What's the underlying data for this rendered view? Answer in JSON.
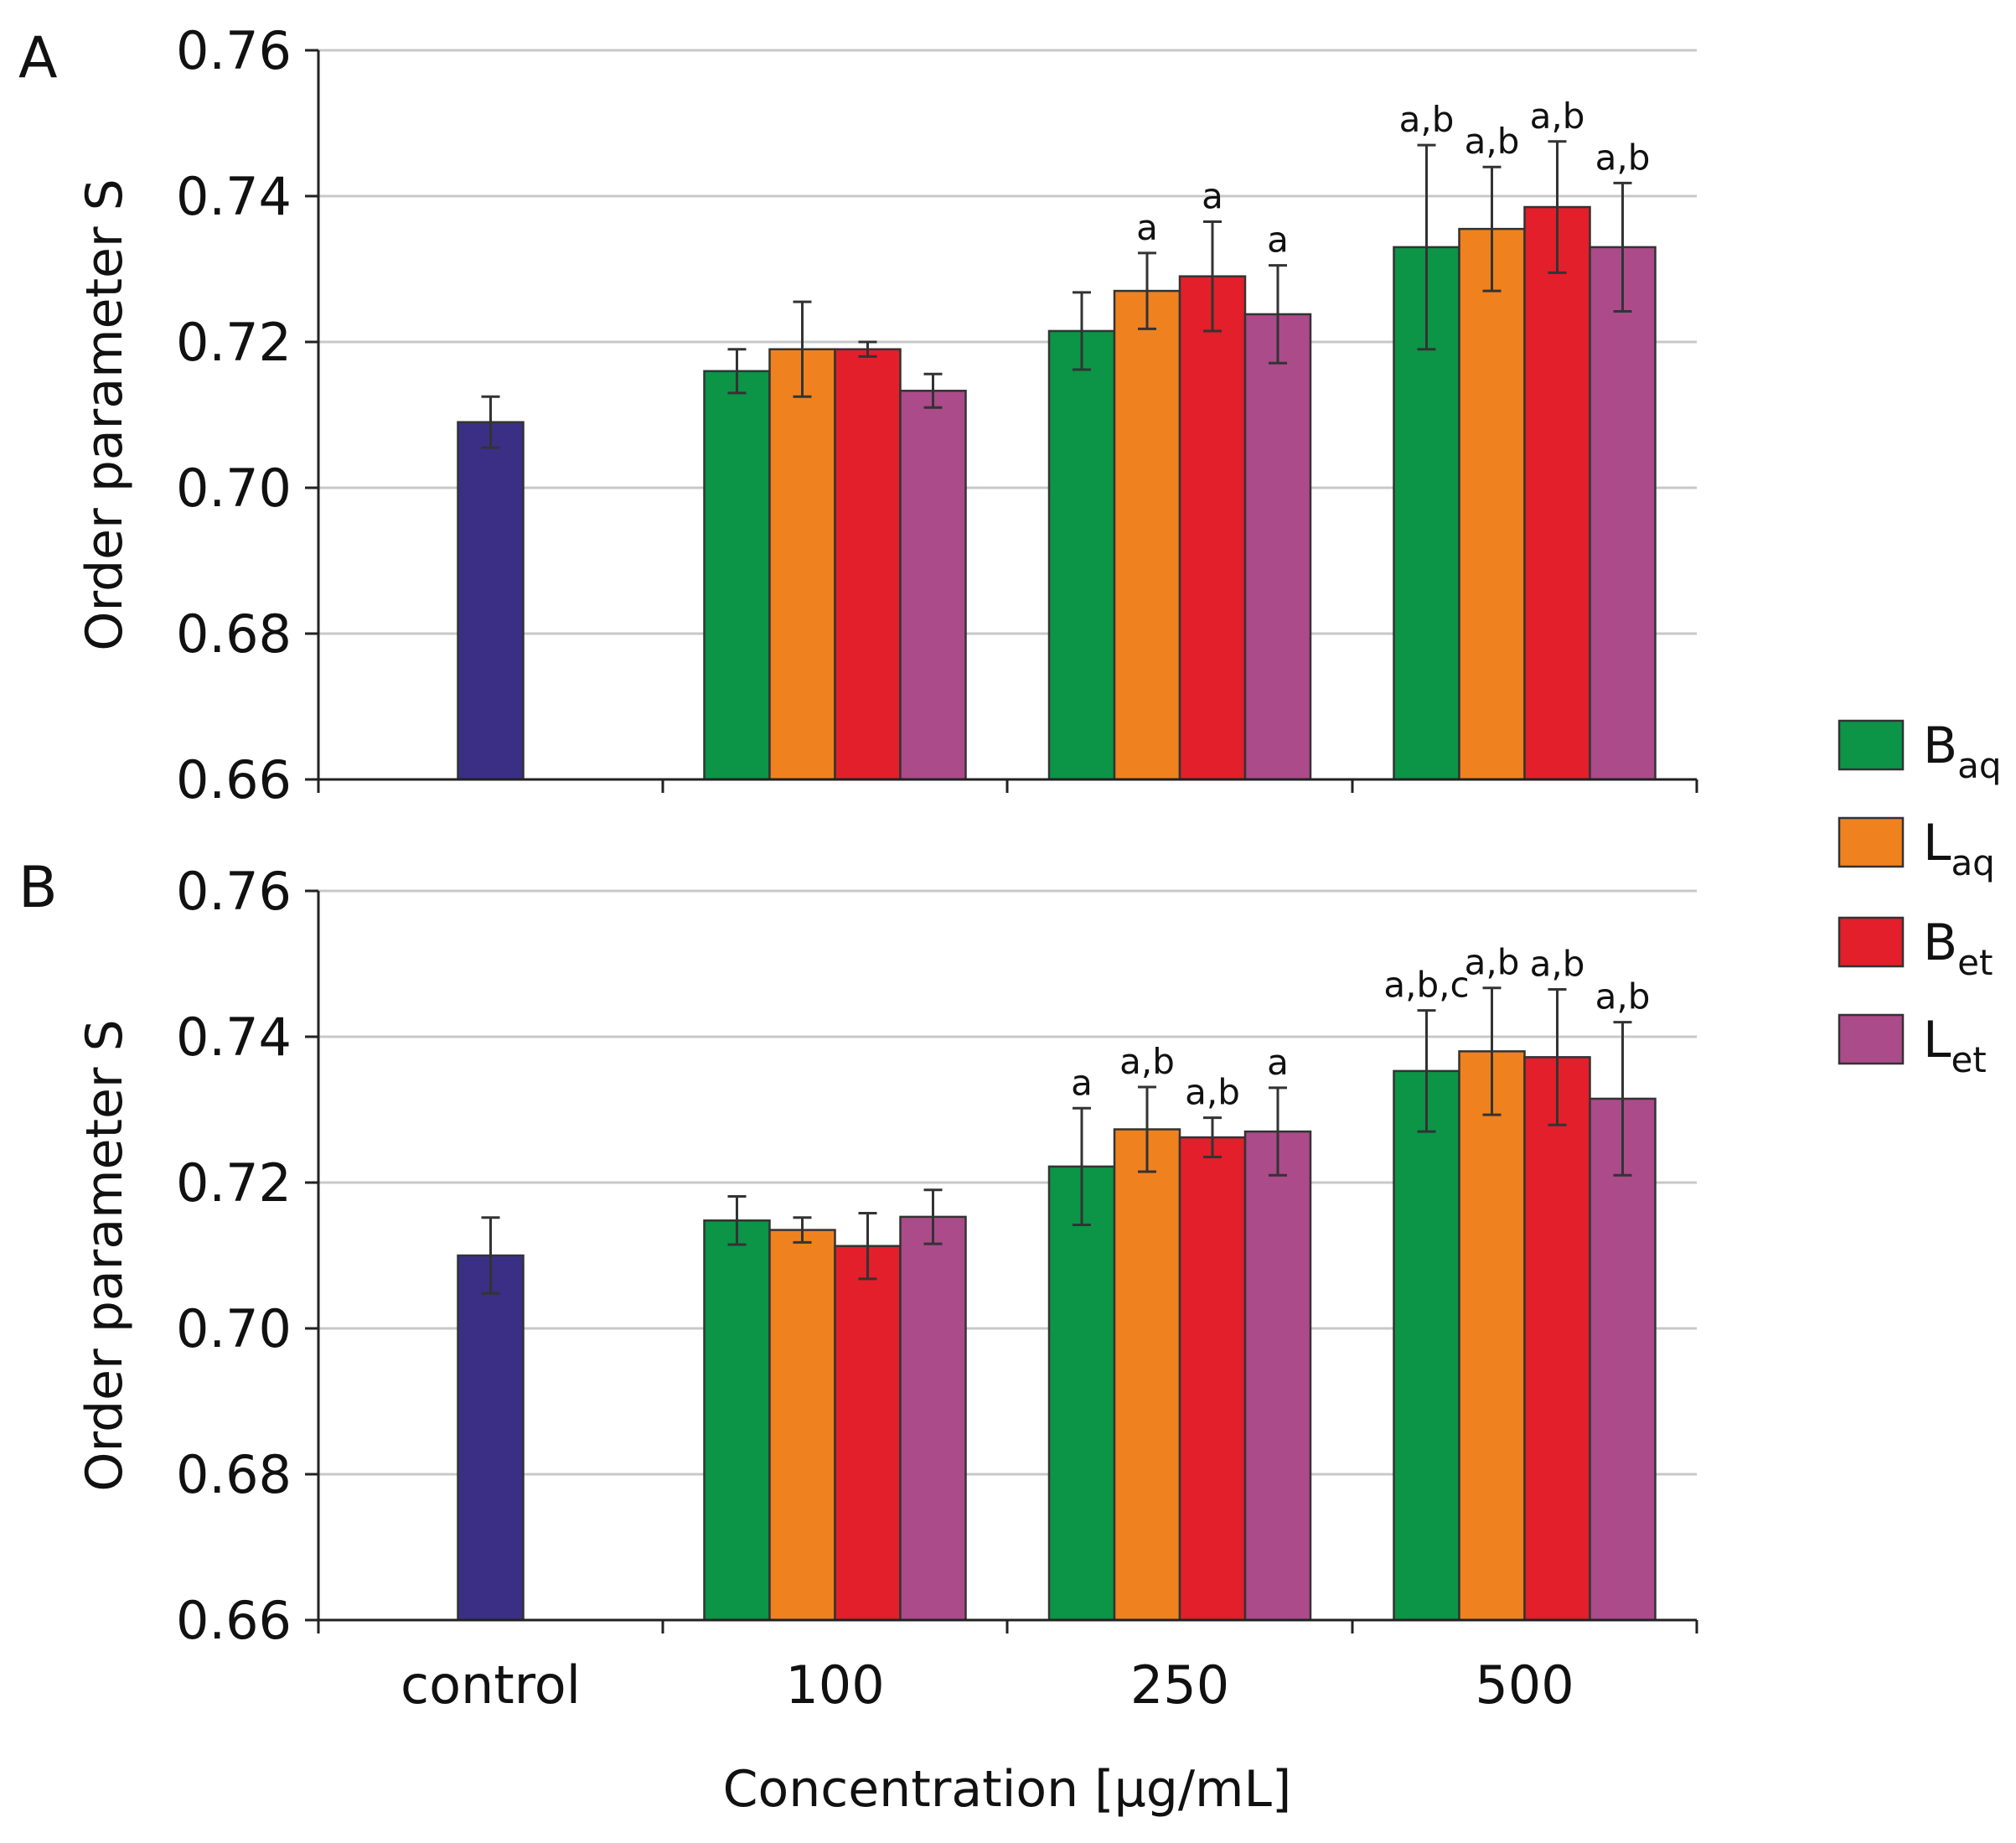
{
  "chart_data": [
    {
      "panel": "A",
      "type": "bar",
      "ylabel": "Order parameter S",
      "xlabel": "",
      "ylim": [
        0.66,
        0.76
      ],
      "yticks": [
        "0.76",
        "0.74",
        "0.72",
        "0.70",
        "0.68",
        "0.66"
      ],
      "grid": true,
      "groups": [
        {
          "category": "control",
          "bars": [
            {
              "series": "control",
              "value": 0.709,
              "error": 0.0035,
              "annotation": ""
            }
          ]
        },
        {
          "category": "100",
          "bars": [
            {
              "series": "Baq",
              "value": 0.716,
              "error": 0.003,
              "annotation": ""
            },
            {
              "series": "Laq",
              "value": 0.719,
              "error": 0.0065,
              "annotation": ""
            },
            {
              "series": "Bet",
              "value": 0.719,
              "error": 0.001,
              "annotation": ""
            },
            {
              "series": "Let",
              "value": 0.7133,
              "error": 0.0023,
              "annotation": ""
            }
          ]
        },
        {
          "category": "250",
          "bars": [
            {
              "series": "Baq",
              "value": 0.7215,
              "error": 0.0053,
              "annotation": ""
            },
            {
              "series": "Laq",
              "value": 0.727,
              "error": 0.0052,
              "annotation": "a"
            },
            {
              "series": "Bet",
              "value": 0.729,
              "error": 0.0075,
              "annotation": "a"
            },
            {
              "series": "Let",
              "value": 0.7238,
              "error": 0.0067,
              "annotation": "a"
            }
          ]
        },
        {
          "category": "500",
          "bars": [
            {
              "series": "Baq",
              "value": 0.733,
              "error": 0.014,
              "annotation": "a,b"
            },
            {
              "series": "Laq",
              "value": 0.7355,
              "error": 0.0085,
              "annotation": "a,b"
            },
            {
              "series": "Bet",
              "value": 0.7385,
              "error": 0.009,
              "annotation": "a,b"
            },
            {
              "series": "Let",
              "value": 0.733,
              "error": 0.0088,
              "annotation": "a,b"
            }
          ]
        }
      ]
    },
    {
      "panel": "B",
      "type": "bar",
      "ylabel": "Order parameter S",
      "xlabel": "Concentration [µg/mL]",
      "ylim": [
        0.66,
        0.76
      ],
      "yticks": [
        "0.76",
        "0.74",
        "0.72",
        "0.70",
        "0.68",
        "0.66"
      ],
      "grid": true,
      "groups": [
        {
          "category": "control",
          "bars": [
            {
              "series": "control",
              "value": 0.71,
              "error": 0.0052,
              "annotation": ""
            }
          ]
        },
        {
          "category": "100",
          "bars": [
            {
              "series": "Baq",
              "value": 0.7148,
              "error": 0.0033,
              "annotation": ""
            },
            {
              "series": "Laq",
              "value": 0.7135,
              "error": 0.0017,
              "annotation": ""
            },
            {
              "series": "Bet",
              "value": 0.7113,
              "error": 0.0045,
              "annotation": ""
            },
            {
              "series": "Let",
              "value": 0.7153,
              "error": 0.0037,
              "annotation": ""
            }
          ]
        },
        {
          "category": "250",
          "bars": [
            {
              "series": "Baq",
              "value": 0.7222,
              "error": 0.008,
              "annotation": "a"
            },
            {
              "series": "Laq",
              "value": 0.7273,
              "error": 0.0058,
              "annotation": "a,b"
            },
            {
              "series": "Bet",
              "value": 0.7262,
              "error": 0.0027,
              "annotation": "a,b"
            },
            {
              "series": "Let",
              "value": 0.727,
              "error": 0.006,
              "annotation": "a"
            }
          ]
        },
        {
          "category": "500",
          "bars": [
            {
              "series": "Baq",
              "value": 0.7353,
              "error": 0.0083,
              "annotation": "a,b,c"
            },
            {
              "series": "Laq",
              "value": 0.738,
              "error": 0.0087,
              "annotation": "a,b"
            },
            {
              "series": "Bet",
              "value": 0.7372,
              "error": 0.0093,
              "annotation": "a,b"
            },
            {
              "series": "Let",
              "value": 0.7315,
              "error": 0.0105,
              "annotation": "a,b"
            }
          ]
        }
      ]
    }
  ],
  "panel_labels": [
    "A",
    "B"
  ],
  "x_categories": [
    "control",
    "100",
    "250",
    "500"
  ],
  "series_colors": {
    "control": "#3a2f85",
    "Baq": "#0c9447",
    "Laq": "#ef821f",
    "Bet": "#e21f2a",
    "Let": "#ab4b8a"
  },
  "legend": [
    {
      "key": "Baq",
      "main": "B",
      "sub": "aq"
    },
    {
      "key": "Laq",
      "main": "L",
      "sub": "aq"
    },
    {
      "key": "Bet",
      "main": "B",
      "sub": "et"
    },
    {
      "key": "Let",
      "main": "L",
      "sub": "et"
    }
  ]
}
